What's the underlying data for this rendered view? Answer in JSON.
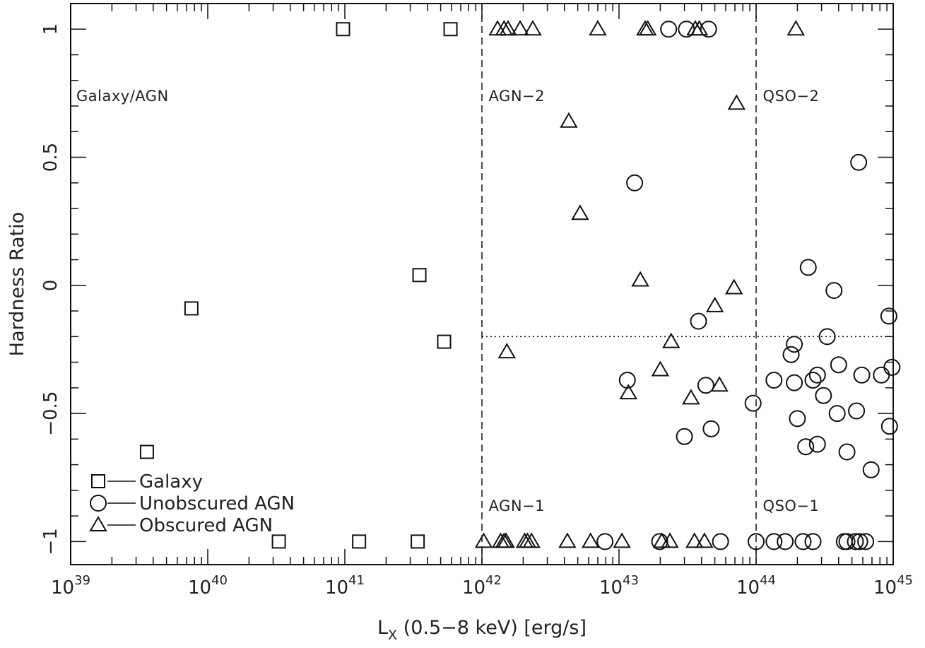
{
  "chart_data": {
    "type": "scatter",
    "title": "",
    "xlabel": "L",
    "xlabel_sub": "X",
    "xlabel_rest": " (0.5−8 keV) [erg/s]",
    "ylabel": "Hardness Ratio",
    "x_scale": "log",
    "xlim": [
      1e+39,
      1e+45
    ],
    "ylim": [
      -1.09,
      1.1
    ],
    "x_ticks": [
      {
        "value": 1e+39,
        "base": "10",
        "exp": "39"
      },
      {
        "value": 1e+40,
        "base": "10",
        "exp": "40"
      },
      {
        "value": 1e+41,
        "base": "10",
        "exp": "41"
      },
      {
        "value": 1e+42,
        "base": "10",
        "exp": "42"
      },
      {
        "value": 1e+43,
        "base": "10",
        "exp": "43"
      },
      {
        "value": 1e+44,
        "base": "10",
        "exp": "44"
      },
      {
        "value": 1e+45,
        "base": "10",
        "exp": "45"
      }
    ],
    "y_ticks": [
      {
        "value": -1,
        "label": "−1"
      },
      {
        "value": -0.5,
        "label": "−0.5"
      },
      {
        "value": 0,
        "label": "0"
      },
      {
        "value": 0.5,
        "label": "0.5"
      },
      {
        "value": 1,
        "label": "1"
      }
    ],
    "grid": false,
    "reference_lines": [
      {
        "orientation": "vertical",
        "x": 1e+42,
        "style": "dashed"
      },
      {
        "orientation": "vertical",
        "x": 1e+44,
        "style": "dashed"
      },
      {
        "orientation": "horizontal",
        "y": -0.2,
        "x_from": 1e+42,
        "x_to": 1e+45,
        "style": "dotted"
      }
    ],
    "region_labels": [
      {
        "text": "Galaxy/AGN",
        "x": 1.1e+39,
        "y": 0.72
      },
      {
        "text": "AGN−2",
        "x": 1.12e+42,
        "y": 0.72
      },
      {
        "text": "QSO−2",
        "x": 1.12e+44,
        "y": 0.72
      },
      {
        "text": "AGN−1",
        "x": 1.12e+42,
        "y": -0.88
      },
      {
        "text": "QSO−1",
        "x": 1.12e+44,
        "y": -0.88
      }
    ],
    "legend_placement": "bottom-left",
    "series": [
      {
        "name": "Galaxy",
        "marker": "square",
        "points": [
          [
            9.7e+40,
            1.0
          ],
          [
            5.9e+41,
            1.0
          ],
          [
            3.5e+41,
            0.04
          ],
          [
            7.6e+39,
            -0.09
          ],
          [
            5.3e+41,
            -0.22
          ],
          [
            3.6e+39,
            -0.65
          ],
          [
            3.3e+40,
            -1.0
          ],
          [
            1.27e+41,
            -1.0
          ],
          [
            3.4e+41,
            -1.0
          ]
        ]
      },
      {
        "name": "Unobscured AGN",
        "marker": "circle",
        "points": [
          [
            2.3e+43,
            1.0
          ],
          [
            3.1e+43,
            1.0
          ],
          [
            4.5e+43,
            1.0
          ],
          [
            5.6e+44,
            0.48
          ],
          [
            1.3e+43,
            0.4
          ],
          [
            2.4e+44,
            0.07
          ],
          [
            3.7e+44,
            -0.02
          ],
          [
            9.3e+44,
            -0.12
          ],
          [
            3.8e+43,
            -0.14
          ],
          [
            3.3e+44,
            -0.2
          ],
          [
            1.9e+44,
            -0.23
          ],
          [
            1.8e+44,
            -0.27
          ],
          [
            4e+44,
            -0.31
          ],
          [
            9.8e+44,
            -0.32
          ],
          [
            1.15e+43,
            -0.37
          ],
          [
            1.35e+44,
            -0.37
          ],
          [
            2.6e+44,
            -0.37
          ],
          [
            2.8e+44,
            -0.35
          ],
          [
            5.9e+44,
            -0.35
          ],
          [
            8.2e+44,
            -0.35
          ],
          [
            1.9e+44,
            -0.38
          ],
          [
            4.3e+43,
            -0.39
          ],
          [
            3.1e+44,
            -0.43
          ],
          [
            9.5e+43,
            -0.46
          ],
          [
            5.4e+44,
            -0.49
          ],
          [
            3.9e+44,
            -0.5
          ],
          [
            2e+44,
            -0.52
          ],
          [
            9.4e+44,
            -0.55
          ],
          [
            4.7e+43,
            -0.56
          ],
          [
            3e+43,
            -0.59
          ],
          [
            2.8e+44,
            -0.62
          ],
          [
            2.3e+44,
            -0.63
          ],
          [
            4.6e+44,
            -0.65
          ],
          [
            6.9e+44,
            -0.72
          ],
          [
            7.9e+42,
            -1.0
          ],
          [
            1.98e+43,
            -1.0
          ],
          [
            5.5e+43,
            -1.0
          ],
          [
            1e+44,
            -1.0
          ],
          [
            1.35e+44,
            -1.0
          ],
          [
            1.63e+44,
            -1.0
          ],
          [
            2.2e+44,
            -1.0
          ],
          [
            2.6e+44,
            -1.0
          ],
          [
            4.4e+44,
            -1.0
          ],
          [
            4.6e+44,
            -1.0
          ],
          [
            5.3e+44,
            -1.0
          ],
          [
            5.7e+44,
            -1.0
          ],
          [
            6.3e+44,
            -1.0
          ]
        ]
      },
      {
        "name": "Obscured AGN",
        "marker": "triangle",
        "points": [
          [
            1.3e+42,
            1.0
          ],
          [
            1.45e+42,
            1.0
          ],
          [
            1.55e+42,
            1.0
          ],
          [
            1.9e+42,
            1.0
          ],
          [
            2.35e+42,
            1.0
          ],
          [
            7e+42,
            1.0
          ],
          [
            1.55e+43,
            1.0
          ],
          [
            1.62e+43,
            1.0
          ],
          [
            3.6e+43,
            1.0
          ],
          [
            3.85e+43,
            1.0
          ],
          [
            1.95e+44,
            1.0
          ],
          [
            7.2e+43,
            0.71
          ],
          [
            4.3e+42,
            0.64
          ],
          [
            5.2e+42,
            0.28
          ],
          [
            1.43e+43,
            0.02
          ],
          [
            6.9e+43,
            -0.01
          ],
          [
            5e+43,
            -0.08
          ],
          [
            2.4e+43,
            -0.22
          ],
          [
            1.52e+42,
            -0.26
          ],
          [
            2e+43,
            -0.33
          ],
          [
            5.4e+43,
            -0.39
          ],
          [
            1.17e+43,
            -0.42
          ],
          [
            3.35e+43,
            -0.44
          ],
          [
            1.03e+42,
            -1.0
          ],
          [
            1.37e+42,
            -1.0
          ],
          [
            1.45e+42,
            -1.0
          ],
          [
            1.5e+42,
            -1.0
          ],
          [
            2.05e+42,
            -1.0
          ],
          [
            2.15e+42,
            -1.0
          ],
          [
            2.3e+42,
            -1.0
          ],
          [
            4.2e+42,
            -1.0
          ],
          [
            6.2e+42,
            -1.0
          ],
          [
            1.05e+43,
            -1.0
          ],
          [
            2.05e+43,
            -1.0
          ],
          [
            2.35e+43,
            -1.0
          ],
          [
            3.55e+43,
            -1.0
          ],
          [
            4.2e+43,
            -1.0
          ]
        ]
      }
    ]
  }
}
